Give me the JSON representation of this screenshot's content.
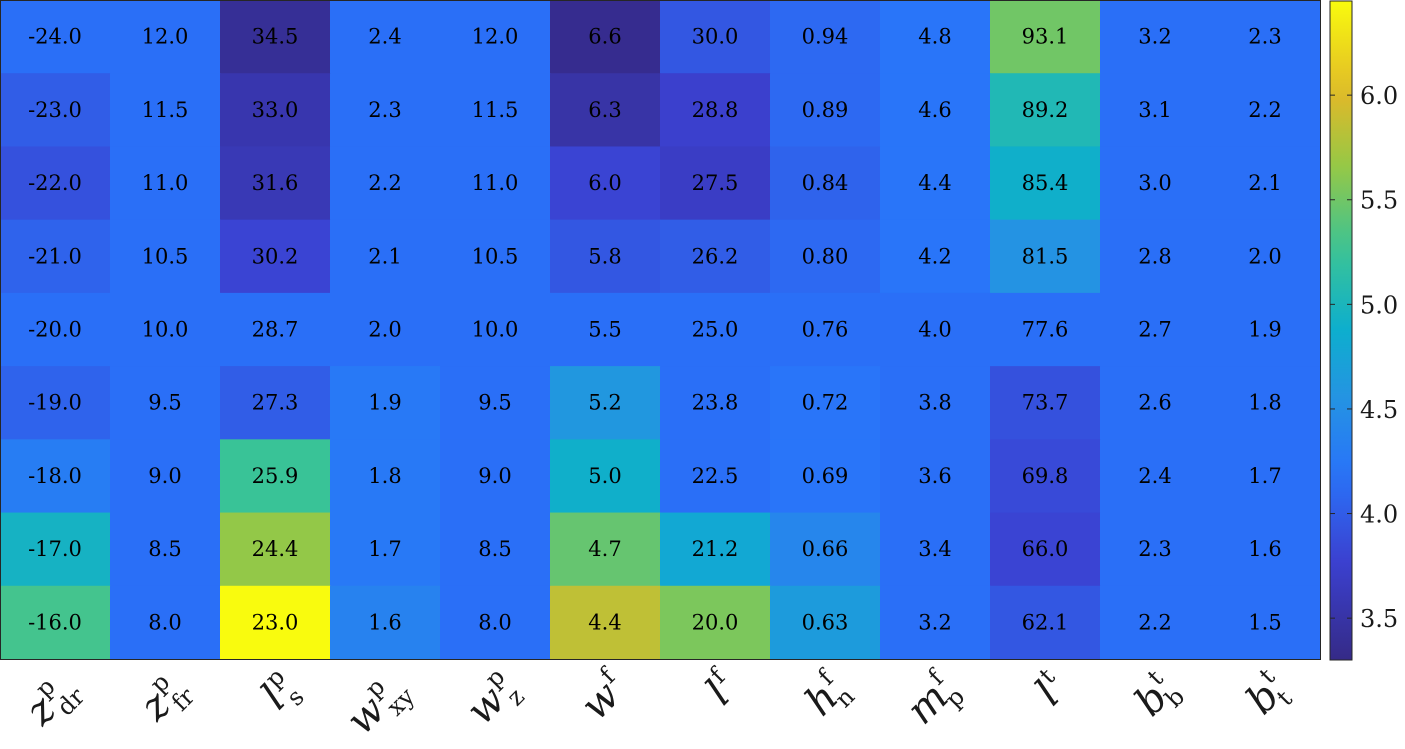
{
  "chart_data": {
    "type": "heatmap",
    "columns": [
      {
        "base": "z",
        "sup": "p",
        "sub": "dr"
      },
      {
        "base": "z",
        "sup": "p",
        "sub": "fr"
      },
      {
        "base": "l",
        "sup": "p",
        "sub": "s"
      },
      {
        "base": "w",
        "sup": "p",
        "sub": "xy"
      },
      {
        "base": "w",
        "sup": "p",
        "sub": "z"
      },
      {
        "base": "w",
        "sup": "f",
        "sub": ""
      },
      {
        "base": "l",
        "sup": "f",
        "sub": ""
      },
      {
        "base": "h",
        "sup": "f",
        "sub": "n"
      },
      {
        "base": "m",
        "sup": "f",
        "sub": "p"
      },
      {
        "base": "l",
        "sup": "t",
        "sub": ""
      },
      {
        "base": "b",
        "sup": "t",
        "sub": "b"
      },
      {
        "base": "b",
        "sup": "t",
        "sub": "t"
      }
    ],
    "labels": [
      [
        "-24.0",
        "12.0",
        "34.5",
        "2.4",
        "12.0",
        "6.6",
        "30.0",
        "0.94",
        "4.8",
        "93.1",
        "3.2",
        "2.3"
      ],
      [
        "-23.0",
        "11.5",
        "33.0",
        "2.3",
        "11.5",
        "6.3",
        "28.8",
        "0.89",
        "4.6",
        "89.2",
        "3.1",
        "2.2"
      ],
      [
        "-22.0",
        "11.0",
        "31.6",
        "2.2",
        "11.0",
        "6.0",
        "27.5",
        "0.84",
        "4.4",
        "85.4",
        "3.0",
        "2.1"
      ],
      [
        "-21.0",
        "10.5",
        "30.2",
        "2.1",
        "10.5",
        "5.8",
        "26.2",
        "0.80",
        "4.2",
        "81.5",
        "2.8",
        "2.0"
      ],
      [
        "-20.0",
        "10.0",
        "28.7",
        "2.0",
        "10.0",
        "5.5",
        "25.0",
        "0.76",
        "4.0",
        "77.6",
        "2.7",
        "1.9"
      ],
      [
        "-19.0",
        "9.5",
        "27.3",
        "1.9",
        "9.5",
        "5.2",
        "23.8",
        "0.72",
        "3.8",
        "73.7",
        "2.6",
        "1.8"
      ],
      [
        "-18.0",
        "9.0",
        "25.9",
        "1.8",
        "9.0",
        "5.0",
        "22.5",
        "0.69",
        "3.6",
        "69.8",
        "2.4",
        "1.7"
      ],
      [
        "-17.0",
        "8.5",
        "24.4",
        "1.7",
        "8.5",
        "4.7",
        "21.2",
        "0.66",
        "3.4",
        "66.0",
        "2.3",
        "1.6"
      ],
      [
        "-16.0",
        "8.0",
        "23.0",
        "1.6",
        "8.0",
        "4.4",
        "20.0",
        "0.63",
        "3.2",
        "62.1",
        "2.2",
        "1.5"
      ]
    ],
    "color_values": [
      [
        4.15,
        4.15,
        3.4,
        4.15,
        4.15,
        3.35,
        3.95,
        4.1,
        4.2,
        5.5,
        4.15,
        4.15
      ],
      [
        4.0,
        4.15,
        3.55,
        4.15,
        4.15,
        3.5,
        3.75,
        4.1,
        4.2,
        5.05,
        4.15,
        4.15
      ],
      [
        3.9,
        4.15,
        3.6,
        4.15,
        4.15,
        3.8,
        3.7,
        4.05,
        4.2,
        4.9,
        4.15,
        4.15
      ],
      [
        4.05,
        4.15,
        3.8,
        4.15,
        4.15,
        3.95,
        4.0,
        4.1,
        4.2,
        4.55,
        4.15,
        4.15
      ],
      [
        4.15,
        4.15,
        4.15,
        4.15,
        4.15,
        4.15,
        4.15,
        4.15,
        4.15,
        4.15,
        4.15,
        4.15
      ],
      [
        4.05,
        4.15,
        4.0,
        4.25,
        4.15,
        4.6,
        4.15,
        4.2,
        4.15,
        3.9,
        4.15,
        4.15
      ],
      [
        4.3,
        4.15,
        5.25,
        4.25,
        4.15,
        4.9,
        4.15,
        4.2,
        4.15,
        3.85,
        4.15,
        4.15
      ],
      [
        4.95,
        4.15,
        5.65,
        4.25,
        4.15,
        5.45,
        4.8,
        4.4,
        4.15,
        3.8,
        4.15,
        4.15
      ],
      [
        5.3,
        4.15,
        6.45,
        4.35,
        4.15,
        5.85,
        5.55,
        4.65,
        4.15,
        3.95,
        4.15,
        4.15
      ]
    ],
    "colorbar": {
      "colormap": "parula",
      "range": [
        3.3,
        6.45
      ],
      "ticks": [
        3.5,
        4.0,
        4.5,
        5.0,
        5.5,
        6.0
      ],
      "tick_labels": [
        "3.5",
        "4.0",
        "4.5",
        "5.0",
        "5.5",
        "6.0"
      ]
    }
  }
}
